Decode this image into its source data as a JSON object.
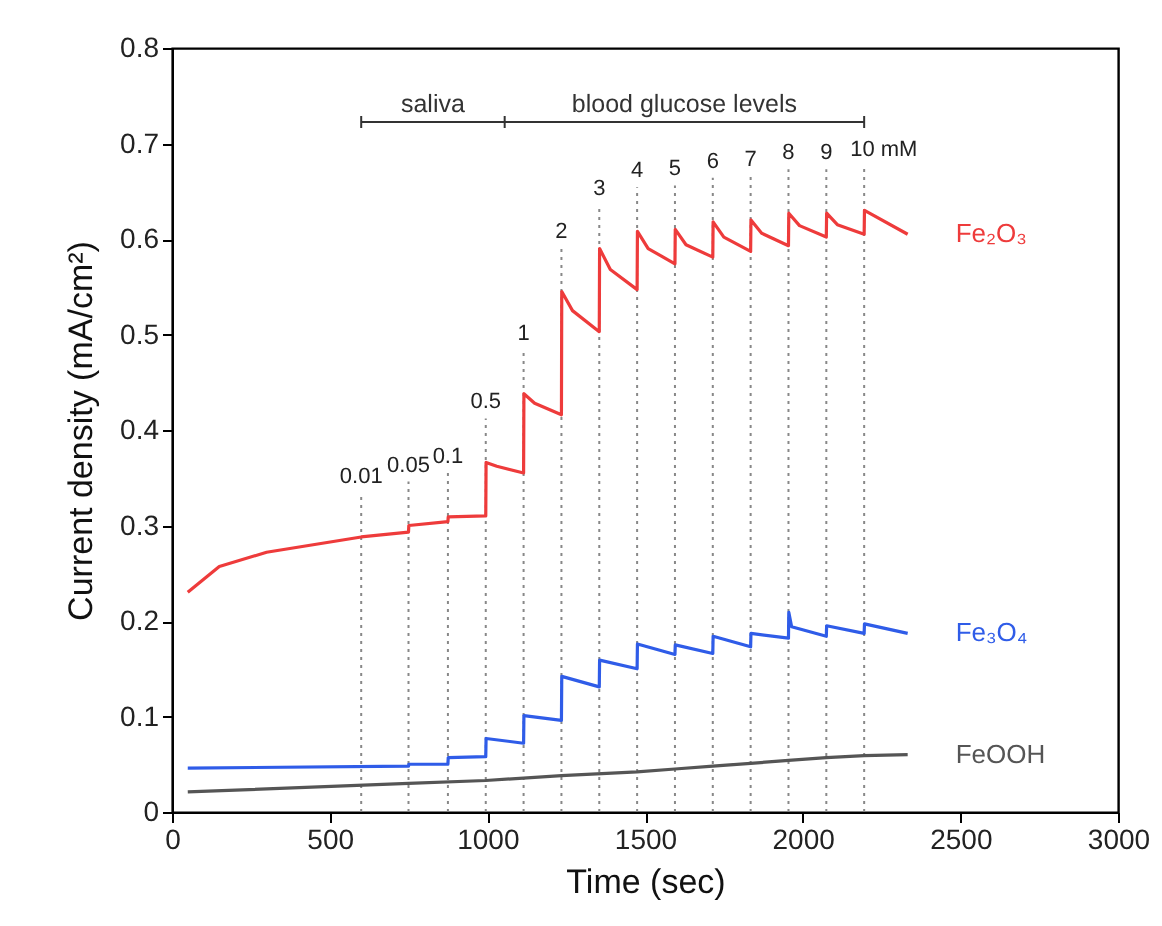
{
  "chart_data": {
    "type": "line",
    "xlabel": "Time (sec)",
    "ylabel": "Current density (mA/cm²)",
    "xlim": [
      0,
      3000
    ],
    "ylim": [
      0,
      0.8
    ],
    "xticks": [
      0,
      500,
      1000,
      1500,
      2000,
      2500,
      3000
    ],
    "yticks": [
      0,
      0.1,
      0.2,
      0.3,
      0.4,
      0.5,
      0.6,
      0.7,
      0.8
    ],
    "grid": false,
    "series": [
      {
        "name": "Fe₂O₃",
        "color": "#ee3b3b",
        "x": [
          50,
          150,
          300,
          600,
          750,
          751,
          875,
          876,
          995,
          996,
          1030,
          1115,
          1116,
          1150,
          1235,
          1236,
          1270,
          1355,
          1356,
          1390,
          1475,
          1476,
          1510,
          1595,
          1596,
          1630,
          1715,
          1716,
          1750,
          1835,
          1836,
          1870,
          1955,
          1956,
          1990,
          2075,
          2076,
          2110,
          2195,
          2196,
          2333
        ],
        "values": [
          0.23,
          0.257,
          0.272,
          0.288,
          0.293,
          0.3,
          0.304,
          0.309,
          0.31,
          0.366,
          0.362,
          0.355,
          0.438,
          0.428,
          0.416,
          0.545,
          0.525,
          0.503,
          0.59,
          0.568,
          0.547,
          0.608,
          0.59,
          0.574,
          0.61,
          0.594,
          0.581,
          0.618,
          0.602,
          0.587,
          0.62,
          0.606,
          0.593,
          0.627,
          0.614,
          0.602,
          0.627,
          0.615,
          0.605,
          0.63,
          0.605
        ]
      },
      {
        "name": "Fe₃O₄",
        "color": "#2f5ce8",
        "x": [
          50,
          750,
          751,
          875,
          876,
          995,
          996,
          1115,
          1116,
          1235,
          1236,
          1355,
          1356,
          1475,
          1476,
          1595,
          1596,
          1715,
          1716,
          1835,
          1836,
          1955,
          1956,
          1965,
          2075,
          2076,
          2195,
          2196,
          2333
        ],
        "values": [
          0.046,
          0.048,
          0.05,
          0.05,
          0.057,
          0.058,
          0.077,
          0.072,
          0.101,
          0.096,
          0.142,
          0.131,
          0.159,
          0.15,
          0.176,
          0.165,
          0.175,
          0.166,
          0.184,
          0.173,
          0.187,
          0.182,
          0.209,
          0.194,
          0.184,
          0.195,
          0.187,
          0.197,
          0.187
        ]
      },
      {
        "name": "FeOOH",
        "color": "#555555",
        "x": [
          50,
          750,
          995,
          1235,
          1475,
          1595,
          1715,
          1835,
          1955,
          2075,
          2195,
          2333
        ],
        "values": [
          0.021,
          0.03,
          0.033,
          0.038,
          0.042,
          0.045,
          0.048,
          0.051,
          0.054,
          0.057,
          0.059,
          0.06
        ]
      }
    ],
    "ref_lines": [
      {
        "axis": "x",
        "value": 600,
        "color": "#888888",
        "line_style": "dotted"
      },
      {
        "axis": "x",
        "value": 750,
        "color": "#888888",
        "line_style": "dotted"
      },
      {
        "axis": "x",
        "value": 875,
        "color": "#888888",
        "line_style": "dotted"
      },
      {
        "axis": "x",
        "value": 995,
        "color": "#888888",
        "line_style": "dotted"
      },
      {
        "axis": "x",
        "value": 1115,
        "color": "#888888",
        "line_style": "dotted"
      },
      {
        "axis": "x",
        "value": 1235,
        "color": "#888888",
        "line_style": "dotted"
      },
      {
        "axis": "x",
        "value": 1355,
        "color": "#888888",
        "line_style": "dotted"
      },
      {
        "axis": "x",
        "value": 1475,
        "color": "#888888",
        "line_style": "dotted"
      },
      {
        "axis": "x",
        "value": 1595,
        "color": "#888888",
        "line_style": "dotted"
      },
      {
        "axis": "x",
        "value": 1715,
        "color": "#888888",
        "line_style": "dotted"
      },
      {
        "axis": "x",
        "value": 1835,
        "color": "#888888",
        "line_style": "dotted"
      },
      {
        "axis": "x",
        "value": 1955,
        "color": "#888888",
        "line_style": "dotted"
      },
      {
        "axis": "x",
        "value": 2075,
        "color": "#888888",
        "line_style": "dotted"
      },
      {
        "axis": "x",
        "value": 2195,
        "color": "#888888",
        "line_style": "dotted"
      }
    ],
    "annotations": [
      "0.01",
      "0.05",
      "0.1",
      "0.5",
      "1",
      "2",
      "3",
      "4",
      "5",
      "6",
      "7",
      "8",
      "9",
      "10 mM",
      "saliva",
      "blood glucose levels"
    ]
  }
}
